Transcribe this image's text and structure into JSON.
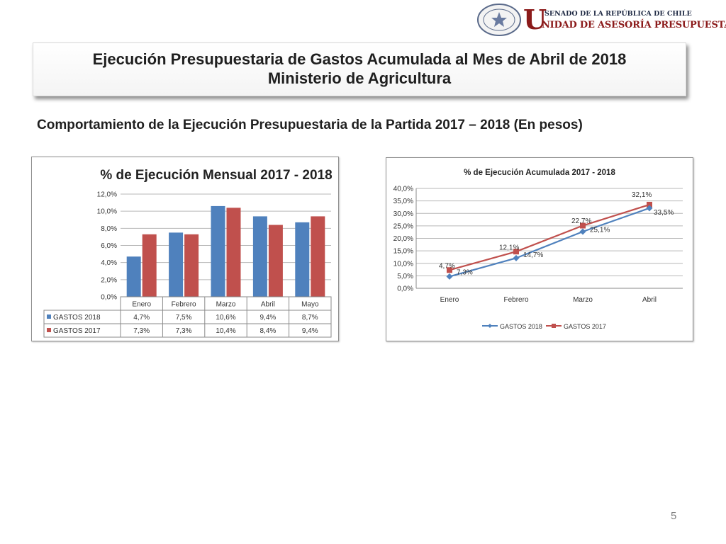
{
  "header": {
    "logo_initial": "U",
    "logo_line1": "SENADO DE LA REPÚBLICA DE CHILE",
    "logo_line2": "NIDAD DE ASESORÍA PRESUPUESTARIA",
    "seal_text_top": "REPÚBLICA DE CHILE",
    "seal_text_bottom": "SENADO"
  },
  "title": {
    "line1": "Ejecución Presupuestaria de Gastos Acumulada al Mes de Abril de 2018",
    "line2": "Ministerio de Agricultura"
  },
  "subtitle": "Comportamiento de la Ejecución Presupuestaria de la Partida 2017 – 2018 (En pesos)",
  "page_number": "5",
  "colors": {
    "gastos_2018": "#4f81bd",
    "gastos_2017": "#c0504d"
  },
  "chart_data": [
    {
      "type": "bar",
      "title": "% de Ejecución Mensual 2017 - 2018",
      "categories": [
        "Enero",
        "Febrero",
        "Marzo",
        "Abril",
        "Mayo"
      ],
      "ylim": [
        0,
        12
      ],
      "y_ticks": [
        "0,0%",
        "2,0%",
        "4,0%",
        "6,0%",
        "8,0%",
        "10,0%",
        "12,0%"
      ],
      "grid": true,
      "legend": "data-table",
      "series": [
        {
          "name": "GASTOS 2018",
          "values": [
            4.7,
            7.5,
            10.6,
            9.4,
            8.7
          ],
          "labels": [
            "4,7%",
            "7,5%",
            "10,6%",
            "9,4%",
            "8,7%"
          ]
        },
        {
          "name": "GASTOS 2017",
          "values": [
            7.3,
            7.3,
            10.4,
            8.4,
            9.4
          ],
          "labels": [
            "7,3%",
            "7,3%",
            "10,4%",
            "8,4%",
            "9,4%"
          ]
        }
      ]
    },
    {
      "type": "line",
      "title": "% de Ejecución Acumulada 2017 - 2018",
      "categories": [
        "Enero",
        "Febrero",
        "Marzo",
        "Abril"
      ],
      "ylim": [
        0,
        40
      ],
      "y_ticks": [
        "0,0%",
        "5,0%",
        "10,0%",
        "15,0%",
        "20,0%",
        "25,0%",
        "30,0%",
        "35,0%",
        "40,0%"
      ],
      "grid": true,
      "legend": "bottom",
      "series": [
        {
          "name": "GASTOS 2018",
          "values": [
            4.7,
            12.1,
            22.7,
            32.1
          ],
          "labels": [
            "4,7%",
            "12,1%",
            "22,7%",
            "32,1%"
          ]
        },
        {
          "name": "GASTOS 2017",
          "values": [
            7.3,
            14.7,
            25.1,
            33.5
          ],
          "labels": [
            "7,3%",
            "14,7%",
            "25,1%",
            "33,5%"
          ]
        }
      ]
    }
  ]
}
